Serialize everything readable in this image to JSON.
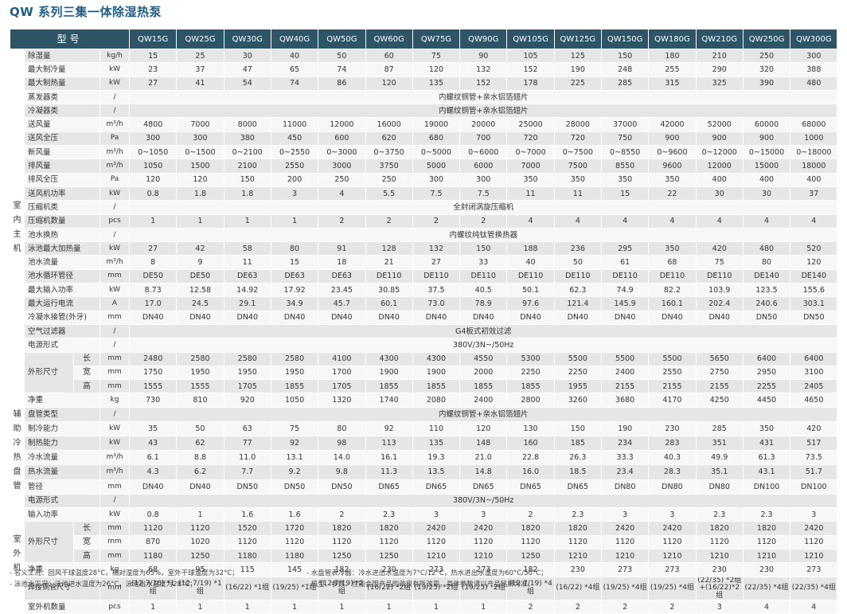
{
  "title": "QW 系列三集一体除湿热泵",
  "header": {
    "label": "型号",
    "models": [
      "QW15G",
      "QW25G",
      "QW30G",
      "QW40G",
      "QW50G",
      "QW60G",
      "QW75G",
      "QW90G",
      "QW105G",
      "QW125G",
      "QW150G",
      "QW180G",
      "QW210G",
      "QW250G",
      "QW300G"
    ]
  },
  "sections": {
    "indoor": "室内主机",
    "aux": "辅助冷热盘管",
    "outdoor": "室外机"
  },
  "rows": [
    {
      "name": "除湿量",
      "unit": "kg/h",
      "values": [
        "15",
        "25",
        "30",
        "40",
        "50",
        "60",
        "75",
        "90",
        "105",
        "125",
        "150",
        "180",
        "210",
        "250",
        "300"
      ]
    },
    {
      "name": "最大制冷量",
      "unit": "kW",
      "values": [
        "23",
        "37",
        "47",
        "65",
        "74",
        "87",
        "120",
        "132",
        "152",
        "190",
        "248",
        "255",
        "290",
        "320",
        "388"
      ]
    },
    {
      "name": "最大制热量",
      "unit": "kW",
      "values": [
        "27",
        "41",
        "54",
        "74",
        "86",
        "120",
        "135",
        "152",
        "178",
        "225",
        "285",
        "315",
        "325",
        "390",
        "480"
      ]
    },
    {
      "name": "蒸发器类",
      "unit": "/",
      "span": "内螺纹铜管+亲水铝箔翅片"
    },
    {
      "name": "冷凝器类",
      "unit": "/",
      "span": "内螺纹铜管+亲水铝箔翅片"
    },
    {
      "name": "送风量",
      "unit": "m³/h",
      "values": [
        "4800",
        "7000",
        "8000",
        "11000",
        "12000",
        "16000",
        "19000",
        "20000",
        "25000",
        "28000",
        "37000",
        "42000",
        "52000",
        "60000",
        "68000"
      ]
    },
    {
      "name": "送风全压",
      "unit": "Pa",
      "values": [
        "300",
        "300",
        "380",
        "450",
        "600",
        "620",
        "680",
        "700",
        "720",
        "720",
        "750",
        "900",
        "900",
        "900",
        "1000"
      ]
    },
    {
      "name": "新风量",
      "unit": "m³/h",
      "values": [
        "0~1050",
        "0~1500",
        "0~2100",
        "0~2550",
        "0~3000",
        "0~3750",
        "0~5000",
        "0~6000",
        "0~7000",
        "0~7500",
        "0~8550",
        "0~9600",
        "0~12000",
        "0~15000",
        "0~18000"
      ]
    },
    {
      "name": "排风量",
      "unit": "m³/h",
      "values": [
        "1050",
        "1500",
        "2100",
        "2550",
        "3000",
        "3750",
        "5000",
        "6000",
        "7000",
        "7500",
        "8550",
        "9600",
        "12000",
        "15000",
        "18000"
      ]
    },
    {
      "name": "排风全压",
      "unit": "Pa",
      "values": [
        "120",
        "120",
        "150",
        "200",
        "250",
        "250",
        "300",
        "300",
        "350",
        "350",
        "350",
        "350",
        "400",
        "400",
        "400"
      ]
    },
    {
      "name": "送风机功率",
      "unit": "kW",
      "values": [
        "0.8",
        "1.8",
        "1.8",
        "3",
        "4",
        "5.5",
        "7.5",
        "7.5",
        "11",
        "11",
        "15",
        "22",
        "30",
        "30",
        "37"
      ]
    },
    {
      "name": "压缩机类",
      "unit": "/",
      "span": "全封闭涡旋压缩机"
    },
    {
      "name": "压缩机数量",
      "unit": "pcs",
      "values": [
        "1",
        "1",
        "1",
        "1",
        "2",
        "2",
        "2",
        "2",
        "4",
        "4",
        "4",
        "4",
        "4",
        "4",
        "4"
      ]
    },
    {
      "name": "池水换热",
      "unit": "/",
      "span": "内螺纹纯钛管换热器"
    },
    {
      "name": "泳池最大加热量",
      "unit": "kW",
      "values": [
        "27",
        "42",
        "58",
        "80",
        "91",
        "128",
        "132",
        "150",
        "188",
        "236",
        "295",
        "350",
        "420",
        "480",
        "520"
      ]
    },
    {
      "name": "池水流量",
      "unit": "m³/h",
      "values": [
        "8",
        "9",
        "11",
        "15",
        "18",
        "21",
        "27",
        "33",
        "40",
        "50",
        "61",
        "68",
        "75",
        "80",
        "120"
      ]
    },
    {
      "name": "池水循环管径",
      "unit": "mm",
      "values": [
        "DE50",
        "DE50",
        "DE63",
        "DE63",
        "DE63",
        "DE110",
        "DE110",
        "DE110",
        "DE110",
        "DE110",
        "DE110",
        "DE110",
        "DE110",
        "DE140",
        "DE140"
      ]
    },
    {
      "name": "最大输入功率",
      "unit": "kW",
      "values": [
        "8.73",
        "12.58",
        "14.92",
        "17.92",
        "23.45",
        "30.85",
        "37.5",
        "40.5",
        "50.1",
        "62.3",
        "74.9",
        "82.2",
        "103.9",
        "123.5",
        "155.6"
      ]
    },
    {
      "name": "最大运行电流",
      "unit": "A",
      "values": [
        "17.0",
        "24.5",
        "29.1",
        "34.9",
        "45.7",
        "60.1",
        "73.0",
        "78.9",
        "97.6",
        "121.4",
        "145.9",
        "160.1",
        "202.4",
        "240.6",
        "303.1"
      ]
    },
    {
      "name": "冷凝水接管(外牙)",
      "unit": "mm",
      "values": [
        "DN40",
        "DN40",
        "DN40",
        "DN40",
        "DN40",
        "DN40",
        "DN40",
        "DN40",
        "DN40",
        "DN40",
        "DN40",
        "DN40",
        "DN40",
        "DN50",
        "DN50"
      ]
    },
    {
      "name": "空气过滤器",
      "unit": "/",
      "span": "G4板式初效过滤"
    },
    {
      "name": "电源形式",
      "unit": "/",
      "span": "380V/3N~/50Hz"
    }
  ],
  "dims_indoor": {
    "name": "外形尺寸",
    "length": {
      "sub": "长",
      "unit": "mm",
      "values": [
        "2480",
        "2580",
        "2580",
        "2580",
        "4100",
        "4300",
        "4300",
        "4550",
        "5300",
        "5500",
        "5500",
        "5500",
        "5650",
        "6400",
        "6400"
      ]
    },
    "width": {
      "sub": "宽",
      "unit": "mm",
      "values": [
        "1750",
        "1950",
        "1950",
        "1950",
        "1700",
        "1900",
        "1900",
        "2000",
        "2250",
        "2250",
        "2400",
        "2550",
        "2750",
        "2950",
        "3100"
      ]
    },
    "height": {
      "sub": "高",
      "unit": "mm",
      "values": [
        "1555",
        "1555",
        "1705",
        "1855",
        "1705",
        "1855",
        "1855",
        "1855",
        "1855",
        "1955",
        "2155",
        "2155",
        "2155",
        "2255",
        "2405"
      ]
    }
  },
  "indoor_weight": {
    "name": "净重",
    "unit": "kg",
    "values": [
      "730",
      "810",
      "920",
      "1050",
      "1320",
      "1740",
      "2080",
      "2400",
      "2800",
      "3260",
      "3680",
      "4170",
      "4250",
      "4450",
      "4650"
    ]
  },
  "aux_rows": [
    {
      "name": "盘管类型",
      "unit": "/",
      "span": "内螺纹铜管+亲水铝箔翅片"
    },
    {
      "name": "制冷能力",
      "unit": "kW",
      "values": [
        "35",
        "50",
        "63",
        "75",
        "80",
        "92",
        "110",
        "120",
        "130",
        "150",
        "190",
        "230",
        "285",
        "350",
        "420"
      ]
    },
    {
      "name": "制热能力",
      "unit": "kW",
      "values": [
        "43",
        "62",
        "77",
        "92",
        "98",
        "113",
        "135",
        "148",
        "160",
        "185",
        "234",
        "283",
        "351",
        "431",
        "517"
      ]
    },
    {
      "name": "冷水流量",
      "unit": "m³/h",
      "values": [
        "6.1",
        "8.8",
        "11.0",
        "13.1",
        "14.0",
        "16.1",
        "19.3",
        "21.0",
        "22.8",
        "26.3",
        "33.3",
        "40.3",
        "49.9",
        "61.3",
        "73.5"
      ]
    },
    {
      "name": "热水流量",
      "unit": "m³/h",
      "values": [
        "4.3",
        "6.2",
        "7.7",
        "9.2",
        "9.8",
        "11.3",
        "13.5",
        "14.8",
        "16.0",
        "18.5",
        "23.4",
        "28.3",
        "35.1",
        "43.1",
        "51.7"
      ]
    },
    {
      "name": "管径",
      "unit": "mm",
      "values": [
        "DN40",
        "DN40",
        "DN50",
        "DN50",
        "DN50",
        "DN65",
        "DN65",
        "DN65",
        "DN65",
        "DN65",
        "DN80",
        "DN80",
        "DN80",
        "DN100",
        "DN100"
      ]
    }
  ],
  "outdoor_rows": [
    {
      "name": "电源形式",
      "unit": "/",
      "span": "380V/3N~/50Hz"
    },
    {
      "name": "输入功率",
      "unit": "kW",
      "values": [
        "0.8",
        "1",
        "1.6",
        "1.6",
        "2",
        "2.3",
        "3",
        "3",
        "2",
        "2.3",
        "3",
        "3",
        "2.3",
        "2.3",
        "3"
      ]
    }
  ],
  "dims_outdoor": {
    "name": "外形尺寸",
    "length": {
      "sub": "长",
      "unit": "mm",
      "values": [
        "1120",
        "1120",
        "1520",
        "1720",
        "1820",
        "1820",
        "2420",
        "2420",
        "1820",
        "1820",
        "2420",
        "2420",
        "1820",
        "1820",
        "2420"
      ]
    },
    "width": {
      "sub": "宽",
      "unit": "mm",
      "values": [
        "870",
        "1020",
        "1120",
        "1120",
        "1120",
        "1120",
        "1120",
        "1120",
        "1120",
        "1120",
        "1120",
        "1120",
        "1120",
        "1120",
        "1120"
      ]
    },
    "height": {
      "sub": "高",
      "unit": "mm",
      "values": [
        "1180",
        "1250",
        "1180",
        "1180",
        "1250",
        "1250",
        "1210",
        "1210",
        "1250",
        "1210",
        "1210",
        "1210",
        "1210",
        "1210",
        "1210"
      ]
    }
  },
  "outdoor_weight": {
    "name": "净重",
    "unit": "kg",
    "values": [
      "68",
      "95",
      "115",
      "145",
      "182",
      "230",
      "273",
      "273",
      "182",
      "230",
      "273",
      "273",
      "230",
      "230",
      "273"
    ]
  },
  "pipe_row": {
    "name": "焊接铜管尺寸",
    "unit": "mm",
    "values": [
      "(12.7/16) *1组",
      "(12.7/19) *1组",
      "(16/22) *1组",
      "(19/25) *1组",
      "(12.7/19) *2组",
      "(16/22) *2组",
      "(19/25) *2组",
      "(19/25) *2组",
      "(12.7/19) *4组",
      "(16/22) *4组",
      "(19/25) *4组",
      "(19/25) *4组",
      "(22/35) *2组 +(16/22)*2组",
      "(22/35) *4组",
      "(22/35) *4组"
    ]
  },
  "outdoor_count": {
    "name": "室外机数量",
    "unit": "pcs",
    "values": [
      "1",
      "1",
      "1",
      "1",
      "1",
      "1",
      "1",
      "1",
      "2",
      "2",
      "2",
      "2",
      "3",
      "4",
      "4"
    ]
  },
  "notes": {
    "n1": "- 名义工况：回风干球温度28°C，相对湿度为65%，室外干球温度为32°C；",
    "n2": "- 泳池水工况：泳池进水温度为26°C，泳池出水温度为28°C；",
    "n3": "- 水盘管表冷器：冷水进出水温度为7°C/12°C，热水进出水温度为60°C/50°C；",
    "n4": "- 机型、参数、性能会因产品的改良有所改变，具体参数请以产品铭牌为准。"
  }
}
